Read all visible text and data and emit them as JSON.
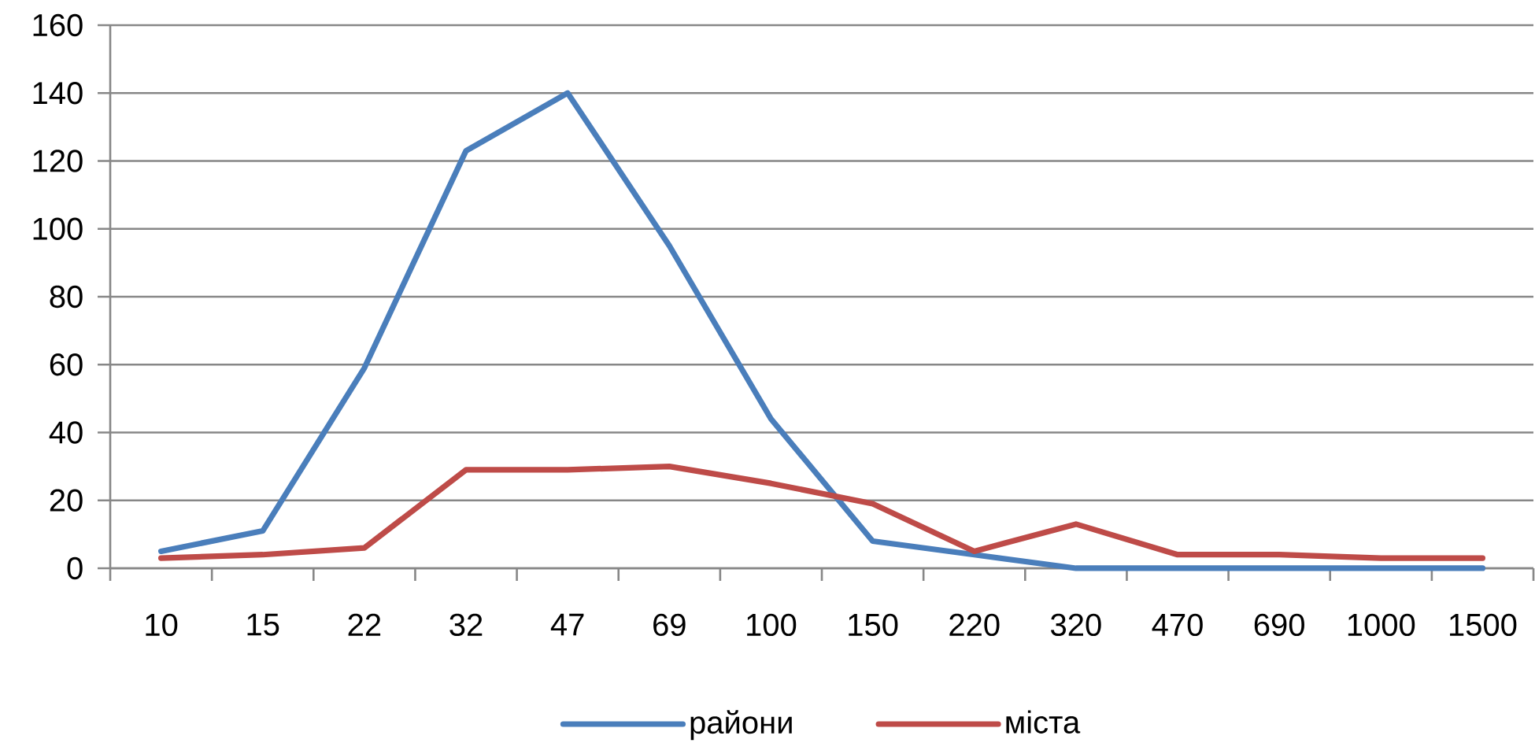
{
  "chart_data": {
    "type": "line",
    "categories": [
      "10",
      "15",
      "22",
      "32",
      "47",
      "69",
      "100",
      "150",
      "220",
      "320",
      "470",
      "690",
      "1000",
      "1500"
    ],
    "series": [
      {
        "name": "райони",
        "color": "#4a7ebb",
        "values": [
          5,
          11,
          59,
          123,
          140,
          95,
          44,
          8,
          4,
          0,
          0,
          0,
          0,
          0
        ]
      },
      {
        "name": "міста",
        "color": "#be4b48",
        "values": [
          3,
          4,
          6,
          29,
          29,
          30,
          25,
          19,
          5,
          13,
          4,
          4,
          3,
          3
        ]
      }
    ],
    "ylim": [
      0,
      160
    ],
    "yticks": [
      0,
      20,
      40,
      60,
      80,
      100,
      120,
      140,
      160
    ],
    "grid": "y",
    "legend": "bottom",
    "line_style": "solid"
  }
}
